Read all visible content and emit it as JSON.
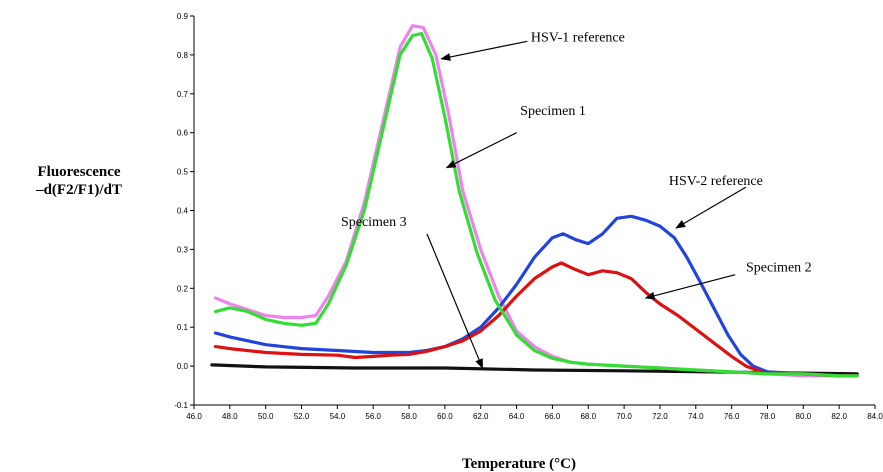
{
  "chart_data": {
    "type": "line",
    "title": "",
    "xlabel": "Temperature (°C)",
    "ylabel_line1": "Fluorescence",
    "ylabel_line2": "–d(F2/F1)/dT",
    "xlim": [
      46.0,
      84.0
    ],
    "ylim": [
      -0.1,
      0.9
    ],
    "xticks": [
      46,
      48,
      50,
      52,
      54,
      56,
      58,
      60,
      62,
      64,
      66,
      68,
      70,
      72,
      74,
      76,
      78,
      80,
      82,
      84
    ],
    "yticks": [
      -0.1,
      0,
      0.1,
      0.2,
      0.3,
      0.4,
      0.5,
      0.6,
      0.7,
      0.8,
      0.9
    ],
    "grid": false,
    "legend": "none",
    "series": [
      {
        "name": "HSV-1 reference",
        "color": "#ee82ee",
        "points": [
          [
            47.2,
            0.175
          ],
          [
            48,
            0.16
          ],
          [
            49,
            0.145
          ],
          [
            50,
            0.13
          ],
          [
            51,
            0.125
          ],
          [
            52,
            0.125
          ],
          [
            52.8,
            0.13
          ],
          [
            53.5,
            0.18
          ],
          [
            54.5,
            0.27
          ],
          [
            55.5,
            0.42
          ],
          [
            56.5,
            0.62
          ],
          [
            57.5,
            0.82
          ],
          [
            58.2,
            0.875
          ],
          [
            58.8,
            0.87
          ],
          [
            59.5,
            0.8
          ],
          [
            60.2,
            0.65
          ],
          [
            61,
            0.45
          ],
          [
            62,
            0.3
          ],
          [
            63,
            0.18
          ],
          [
            64,
            0.09
          ],
          [
            65,
            0.05
          ],
          [
            66,
            0.025
          ],
          [
            67,
            0.01
          ],
          [
            68,
            0.005
          ],
          [
            70,
            0.0
          ],
          [
            72,
            -0.005
          ],
          [
            74,
            -0.01
          ],
          [
            76,
            -0.015
          ],
          [
            78,
            -0.02
          ],
          [
            80,
            -0.025
          ],
          [
            82,
            -0.025
          ],
          [
            83,
            -0.025
          ]
        ]
      },
      {
        "name": "Specimen 1",
        "color": "#33dd33",
        "points": [
          [
            47.2,
            0.14
          ],
          [
            48,
            0.15
          ],
          [
            49,
            0.14
          ],
          [
            50,
            0.12
          ],
          [
            51,
            0.11
          ],
          [
            52,
            0.105
          ],
          [
            52.8,
            0.11
          ],
          [
            53.5,
            0.16
          ],
          [
            54.5,
            0.26
          ],
          [
            55.5,
            0.4
          ],
          [
            56.5,
            0.6
          ],
          [
            57.5,
            0.8
          ],
          [
            58.2,
            0.85
          ],
          [
            58.7,
            0.855
          ],
          [
            59.3,
            0.79
          ],
          [
            60,
            0.64
          ],
          [
            60.8,
            0.45
          ],
          [
            61.8,
            0.29
          ],
          [
            62.8,
            0.17
          ],
          [
            64,
            0.08
          ],
          [
            65,
            0.04
          ],
          [
            66,
            0.02
          ],
          [
            67,
            0.01
          ],
          [
            68,
            0.005
          ],
          [
            70,
            0.0
          ],
          [
            72,
            -0.005
          ],
          [
            74,
            -0.01
          ],
          [
            76,
            -0.015
          ],
          [
            78,
            -0.02
          ],
          [
            80,
            -0.02
          ],
          [
            82,
            -0.025
          ],
          [
            83,
            -0.025
          ]
        ]
      },
      {
        "name": "HSV-2 reference",
        "color": "#2244dd",
        "points": [
          [
            47.2,
            0.085
          ],
          [
            48,
            0.075
          ],
          [
            50,
            0.055
          ],
          [
            52,
            0.045
          ],
          [
            54,
            0.04
          ],
          [
            56,
            0.035
          ],
          [
            58,
            0.035
          ],
          [
            59,
            0.04
          ],
          [
            60,
            0.05
          ],
          [
            61,
            0.07
          ],
          [
            62,
            0.1
          ],
          [
            63,
            0.15
          ],
          [
            64,
            0.21
          ],
          [
            65,
            0.28
          ],
          [
            66,
            0.33
          ],
          [
            66.6,
            0.34
          ],
          [
            67.3,
            0.325
          ],
          [
            68,
            0.315
          ],
          [
            68.8,
            0.34
          ],
          [
            69.6,
            0.38
          ],
          [
            70.4,
            0.385
          ],
          [
            71.2,
            0.375
          ],
          [
            72,
            0.36
          ],
          [
            72.8,
            0.33
          ],
          [
            73.5,
            0.28
          ],
          [
            74.2,
            0.22
          ],
          [
            75,
            0.15
          ],
          [
            75.8,
            0.08
          ],
          [
            76.5,
            0.03
          ],
          [
            77.2,
            0.0
          ],
          [
            78,
            -0.015
          ],
          [
            80,
            -0.02
          ],
          [
            82,
            -0.025
          ],
          [
            83,
            -0.025
          ]
        ]
      },
      {
        "name": "Specimen 2",
        "color": "#dd1111",
        "points": [
          [
            47.2,
            0.05
          ],
          [
            48,
            0.045
          ],
          [
            50,
            0.035
          ],
          [
            52,
            0.03
          ],
          [
            54,
            0.028
          ],
          [
            55,
            0.022
          ],
          [
            56,
            0.025
          ],
          [
            57,
            0.028
          ],
          [
            58,
            0.03
          ],
          [
            59,
            0.038
          ],
          [
            60,
            0.05
          ],
          [
            61,
            0.065
          ],
          [
            62,
            0.09
          ],
          [
            63,
            0.13
          ],
          [
            64,
            0.18
          ],
          [
            65,
            0.225
          ],
          [
            66,
            0.255
          ],
          [
            66.5,
            0.265
          ],
          [
            67.2,
            0.25
          ],
          [
            68,
            0.235
          ],
          [
            68.8,
            0.245
          ],
          [
            69.6,
            0.24
          ],
          [
            70.4,
            0.225
          ],
          [
            71.2,
            0.19
          ],
          [
            72,
            0.16
          ],
          [
            73,
            0.13
          ],
          [
            74,
            0.095
          ],
          [
            75,
            0.06
          ],
          [
            76,
            0.025
          ],
          [
            76.8,
            0.0
          ],
          [
            78,
            -0.02
          ],
          [
            80,
            -0.02
          ],
          [
            82,
            -0.025
          ],
          [
            83,
            -0.025
          ]
        ]
      },
      {
        "name": "Specimen 3",
        "color": "#111111",
        "points": [
          [
            47,
            0.003
          ],
          [
            50,
            -0.002
          ],
          [
            55,
            -0.005
          ],
          [
            60,
            -0.005
          ],
          [
            65,
            -0.01
          ],
          [
            70,
            -0.012
          ],
          [
            75,
            -0.015
          ],
          [
            80,
            -0.018
          ],
          [
            83,
            -0.02
          ]
        ]
      }
    ],
    "annotations": [
      {
        "id": "hsv1-ref",
        "text": "HSV-1 reference",
        "text_at": [
          64.8,
          0.834
        ],
        "arrow_from": [
          64.6,
          0.835
        ],
        "arrow_to": [
          59.8,
          0.79
        ]
      },
      {
        "id": "specimen-1",
        "text": "Specimen 1",
        "text_at": [
          64.2,
          0.645
        ],
        "arrow_from": [
          64.0,
          0.6
        ],
        "arrow_to": [
          60.1,
          0.51
        ]
      },
      {
        "id": "hsv2-ref",
        "text": "HSV-2 reference",
        "text_at": [
          72.5,
          0.465
        ],
        "arrow_from": [
          76.8,
          0.46
        ],
        "arrow_to": [
          72.9,
          0.355
        ]
      },
      {
        "id": "specimen-2",
        "text": "Specimen 2",
        "text_at": [
          76.8,
          0.243
        ],
        "arrow_from": [
          76.2,
          0.235
        ],
        "arrow_to": [
          71.2,
          0.175
        ]
      },
      {
        "id": "specimen-3",
        "text": "Specimen 3",
        "text_at": [
          54.2,
          0.36
        ],
        "arrow_from": [
          59.0,
          0.34
        ],
        "arrow_to": [
          62.1,
          -0.005
        ]
      }
    ]
  }
}
